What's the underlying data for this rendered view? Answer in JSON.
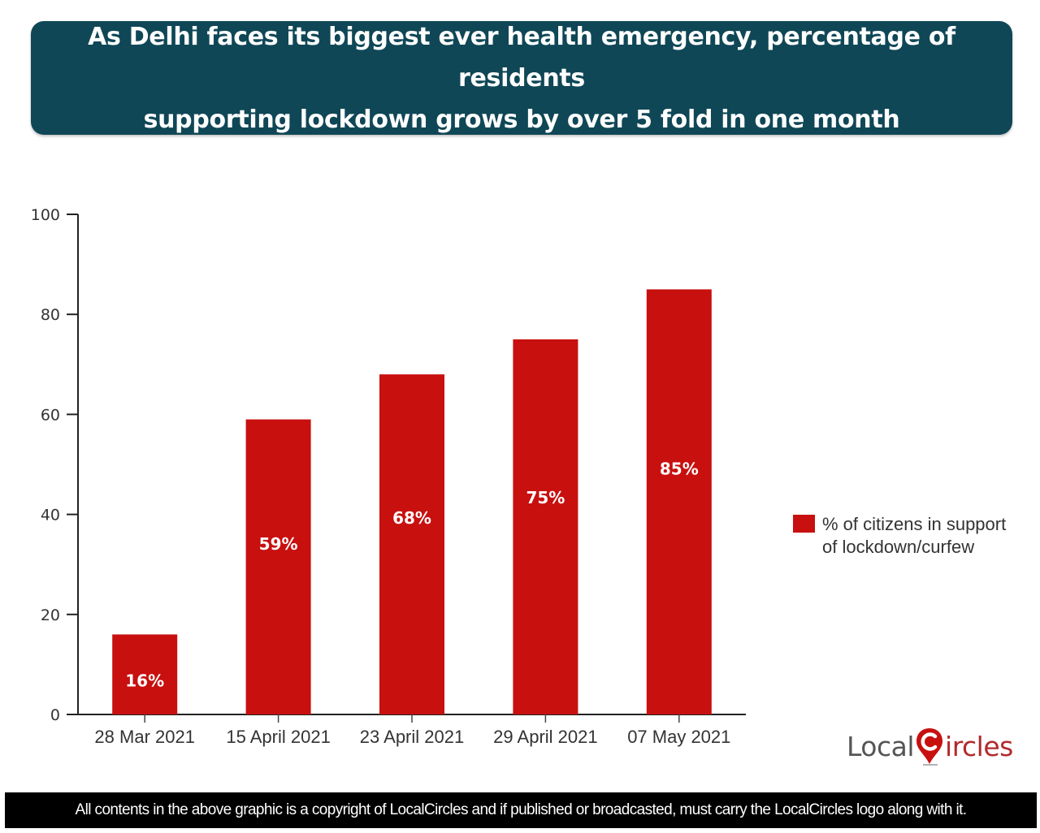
{
  "header": {
    "title_line1": "As Delhi faces its biggest ever health emergency, percentage of residents",
    "title_line2": "supporting lockdown grows by over 5 fold in one month"
  },
  "chart_data": {
    "type": "bar",
    "title": "As Delhi faces its biggest ever health emergency, percentage of residents supporting lockdown grows by over 5 fold in one month",
    "xlabel": "",
    "ylabel": "",
    "categories": [
      "28 Mar 2021",
      "15 April 2021",
      "23 April 2021",
      "29 April 2021",
      "07 May 2021"
    ],
    "series": [
      {
        "name": "% of citizens in support of lockdown/curfew",
        "values": [
          16,
          59,
          68,
          75,
          85
        ],
        "data_labels": [
          "16%",
          "59%",
          "68%",
          "75%",
          "85%"
        ],
        "color": "#c8100f"
      }
    ],
    "ylim": [
      0,
      100
    ],
    "yticks": [
      0,
      20,
      40,
      60,
      80,
      100
    ],
    "grid": false,
    "legend": "right"
  },
  "legend": {
    "label_line1": "% of citizens in support",
    "label_line2": "of lockdown/curfew",
    "color": "#c8100f"
  },
  "logo": {
    "part1": "Local",
    "part2": "ircles",
    "brand_color": "#c8100f"
  },
  "footer": {
    "text": "All contents in the above graphic is a copyright of LocalCircles and if published or broadcasted, must carry the LocalCircles logo along with it."
  }
}
